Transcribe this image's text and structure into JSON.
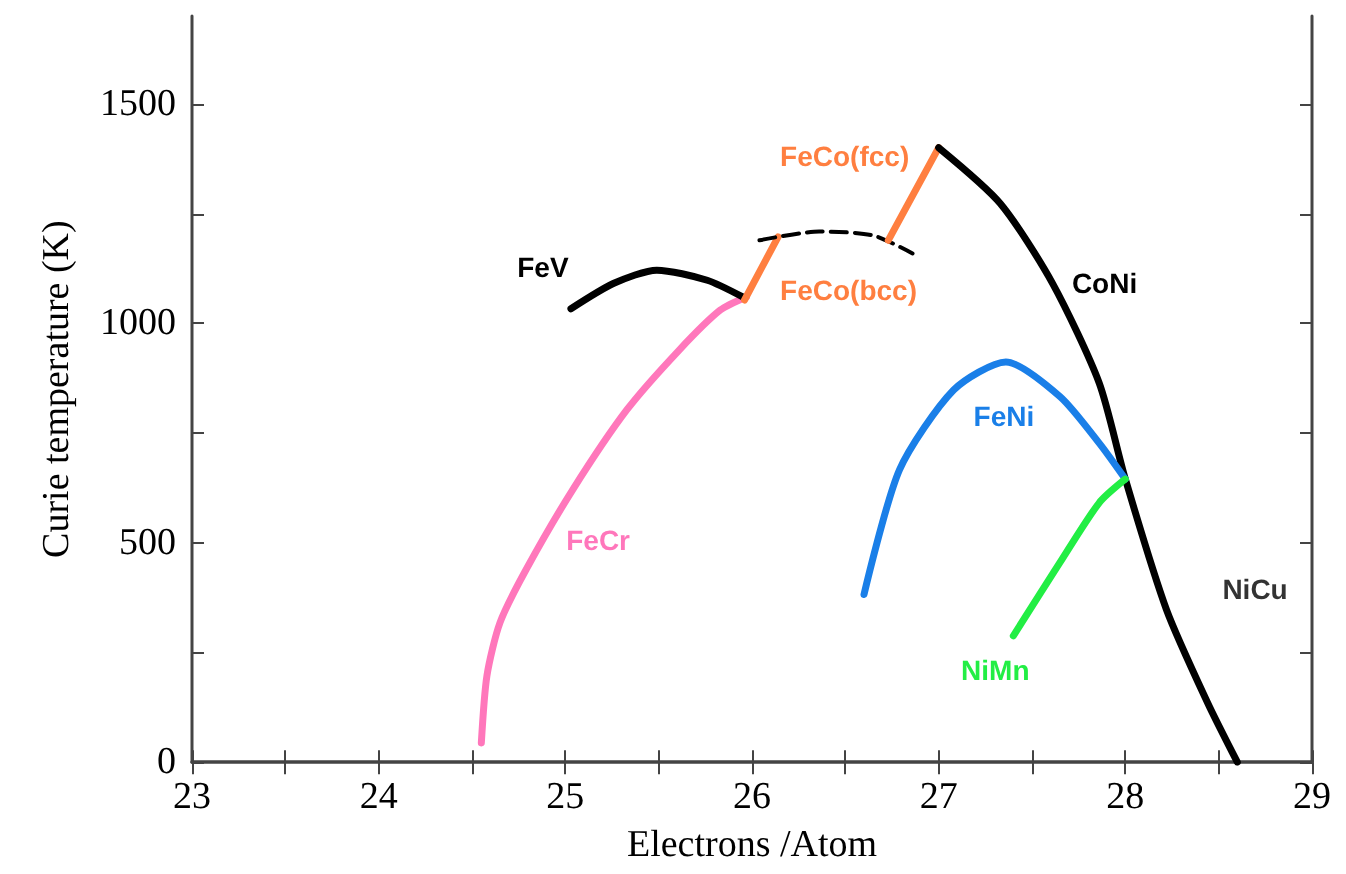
{
  "chart_data": {
    "type": "line",
    "xlabel": "Electrons /Atom",
    "ylabel": "Curie temperature (K)",
    "xlim": [
      23,
      29
    ],
    "ylim": [
      0,
      1700
    ],
    "xticks": [
      23,
      {
        "value": 23.5,
        "label": null
      },
      24,
      {
        "value": 24.5,
        "label": null
      },
      25,
      {
        "value": 25.5,
        "label": null
      },
      26,
      {
        "value": 26.5,
        "label": null
      },
      27,
      {
        "value": 27.5,
        "label": null
      },
      28,
      {
        "value": 28.5,
        "label": null
      },
      29
    ],
    "yticks": [
      0,
      {
        "value": 250,
        "label": null
      },
      500,
      {
        "value": 750,
        "label": null
      },
      1000,
      {
        "value": 1250,
        "label": null
      },
      1500
    ],
    "annotations": [
      {
        "text": "NiCu",
        "x": 28.22,
        "y": 348
      }
    ],
    "grid": false,
    "legend": false,
    "marker": "none",
    "series": [
      {
        "name": "FeCr",
        "color": "#ff77bb",
        "x": [
          24.55,
          24.58,
          24.65,
          24.79,
          25.04,
          25.33,
          25.61,
          25.83,
          25.97
        ],
        "values": [
          44,
          197,
          318,
          439,
          621,
          803,
          939,
          1030,
          1060
        ]
      },
      {
        "name": "FeV",
        "color": "#000000",
        "x": [
          25.03,
          25.26,
          25.49,
          25.76,
          25.95
        ],
        "values": [
          1033,
          1091,
          1121,
          1098,
          1060
        ]
      },
      {
        "name": "FeCo(bcc)",
        "color": "#ff7f40",
        "x": [
          25.96,
          26.14
        ],
        "values": [
          1053,
          1197
        ]
      },
      {
        "color": "#000000",
        "line_style": "dashed",
        "x": [
          26.04,
          26.36,
          26.65,
          26.86
        ],
        "values": [
          1189,
          1209,
          1200,
          1159
        ]
      },
      {
        "name": "FeCo(fcc)",
        "color": "#ff7f40",
        "x": [
          26.73,
          27.0
        ],
        "values": [
          1189,
          1400
        ]
      },
      {
        "name": "CoNi",
        "color": "#000000",
        "x": [
          27.0,
          27.33,
          27.61,
          27.86,
          28.0,
          28.22,
          28.44,
          28.6
        ],
        "values": [
          1400,
          1273,
          1091,
          864,
          645,
          348,
          136,
          0
        ]
      },
      {
        "name": "FeNi",
        "color": "#1a7fe8",
        "x": [
          26.6,
          26.79,
          27.08,
          27.36,
          27.65,
          27.86,
          28.0
        ],
        "values": [
          382,
          666,
          848,
          912,
          833,
          727,
          645
        ]
      },
      {
        "name": "NiMn",
        "color": "#22ee44",
        "x": [
          27.4,
          27.65,
          27.86,
          28.0
        ],
        "values": [
          288,
          455,
          591,
          645
        ]
      }
    ]
  }
}
